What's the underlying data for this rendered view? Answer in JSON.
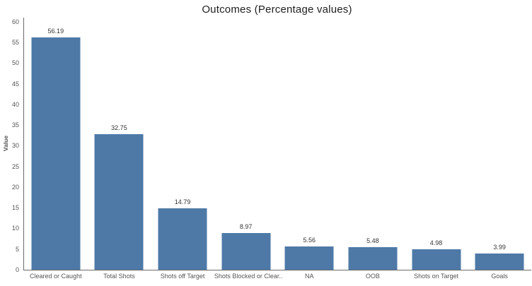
{
  "chart_data": {
    "type": "bar",
    "title": "Outcomes (Percentage values)",
    "xlabel": "",
    "ylabel": "Value",
    "categories": [
      "Cleared or Caught",
      "Total Shots",
      "Shots off Target",
      "Shots Blocked or Clear..",
      "NA",
      "OOB",
      "Shots on Target",
      "Goals"
    ],
    "values": [
      56.19,
      32.75,
      14.79,
      8.97,
      5.56,
      5.48,
      4.98,
      3.99
    ],
    "value_labels": [
      "56.19",
      "32.75",
      "14.79",
      "8.97",
      "5.56",
      "5.48",
      "4.98",
      "3.99"
    ],
    "y_ticks": [
      0,
      5,
      10,
      15,
      20,
      25,
      30,
      35,
      40,
      45,
      50,
      55,
      60
    ],
    "ylim": [
      0,
      61
    ],
    "grid": false,
    "legend": null,
    "colors": {
      "bar": "#4e79a7",
      "axis_line": "#6b6b6b",
      "tick_label": "#555555",
      "bar_value_label": "#333333",
      "category_label": "#555555",
      "title": "#1e1e1e",
      "y_axis_title": "#555555",
      "background": "#ffffff"
    }
  }
}
